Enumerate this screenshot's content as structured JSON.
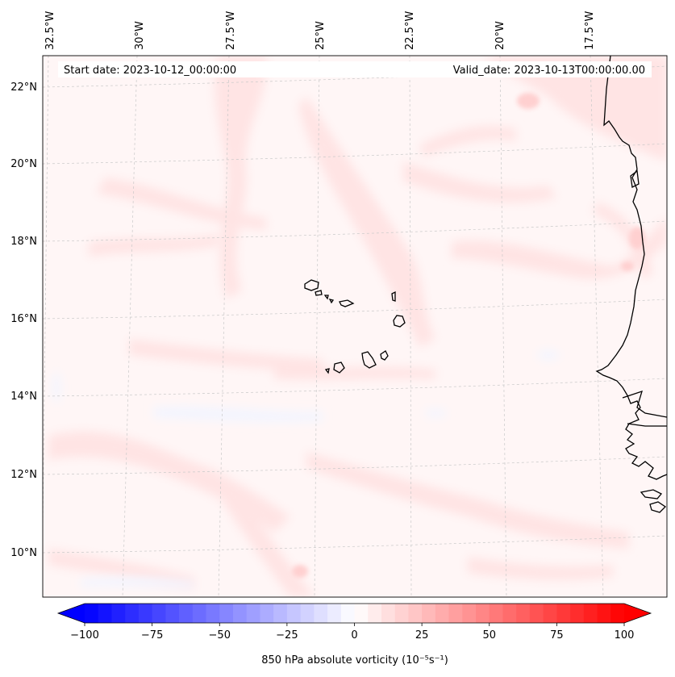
{
  "map": {
    "start_date_label": "Start date: 2023-10-12_00:00:00",
    "valid_date_label": "Valid_date: 2023-10-13T00:00:00.00",
    "lon_labels": [
      "32.5°W",
      "30°W",
      "27.5°W",
      "25°W",
      "22.5°W",
      "20°W",
      "17.5°W"
    ],
    "lat_labels": [
      "22°N",
      "20°N",
      "18°N",
      "16°N",
      "14°N",
      "12°N",
      "10°N"
    ],
    "features": [
      "Cabo Verde islands",
      "West African coastline"
    ]
  },
  "colorbar": {
    "label": "850 hPa absolute vorticity (10⁻⁵s⁻¹)",
    "min": -100,
    "max": 100,
    "tick_values": [
      -100,
      -75,
      -50,
      -25,
      0,
      25,
      50,
      75,
      100
    ],
    "tick_labels": [
      "−100",
      "−75",
      "−50",
      "−25",
      "0",
      "25",
      "50",
      "75",
      "100"
    ],
    "colormap": "bwr",
    "low_color": "#0000ff",
    "mid_color": "#ffffff",
    "high_color": "#ff0000"
  }
}
